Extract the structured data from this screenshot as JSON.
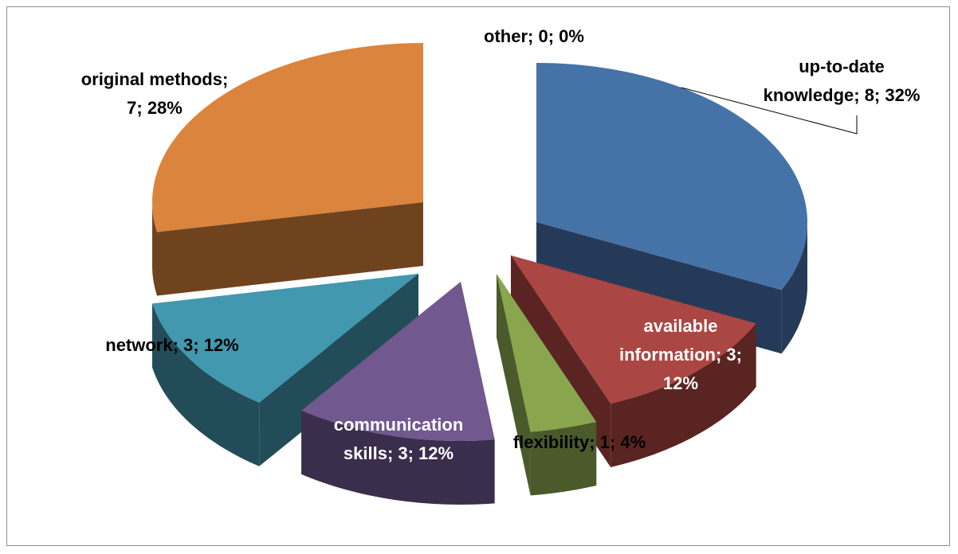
{
  "chart_data": {
    "type": "pie",
    "style": "3d-exploded",
    "title": "",
    "slices": [
      {
        "name": "up-to-date knowledge",
        "value": 8,
        "percent": 32,
        "label": [
          "up-to-date",
          "knowledge; 8; 32%"
        ],
        "color": "#4572a7",
        "side_color": "#253a58",
        "label_color": "#000000"
      },
      {
        "name": "available information",
        "value": 3,
        "percent": 12,
        "label": [
          "available",
          "information; 3;",
          "12%"
        ],
        "color": "#aa4643",
        "side_color": "#5a2423",
        "label_color": "#ffffff"
      },
      {
        "name": "flexibility",
        "value": 1,
        "percent": 4,
        "label": [
          "flexibility; 1; 4%"
        ],
        "color": "#89a54e",
        "side_color": "#4a5a2a",
        "label_color": "#000000"
      },
      {
        "name": "communication skills",
        "value": 3,
        "percent": 12,
        "label": [
          "communication",
          "skills; 3; 12%"
        ],
        "color": "#71588f",
        "side_color": "#3b2d4c",
        "label_color": "#ffffff"
      },
      {
        "name": "network",
        "value": 3,
        "percent": 12,
        "label": [
          "network; 3; 12%"
        ],
        "color": "#4198af",
        "side_color": "#224c58",
        "label_color": "#000000"
      },
      {
        "name": "original methods",
        "value": 7,
        "percent": 28,
        "label": [
          "original methods;",
          "7; 28%"
        ],
        "color": "#db843d",
        "side_color": "#70431f",
        "label_color": "#000000"
      },
      {
        "name": "other",
        "value": 0,
        "percent": 0,
        "label": [
          "other; 0; 0%"
        ],
        "color": "#93a9cf",
        "side_color": "#4a5568",
        "label_color": "#000000"
      }
    ]
  }
}
